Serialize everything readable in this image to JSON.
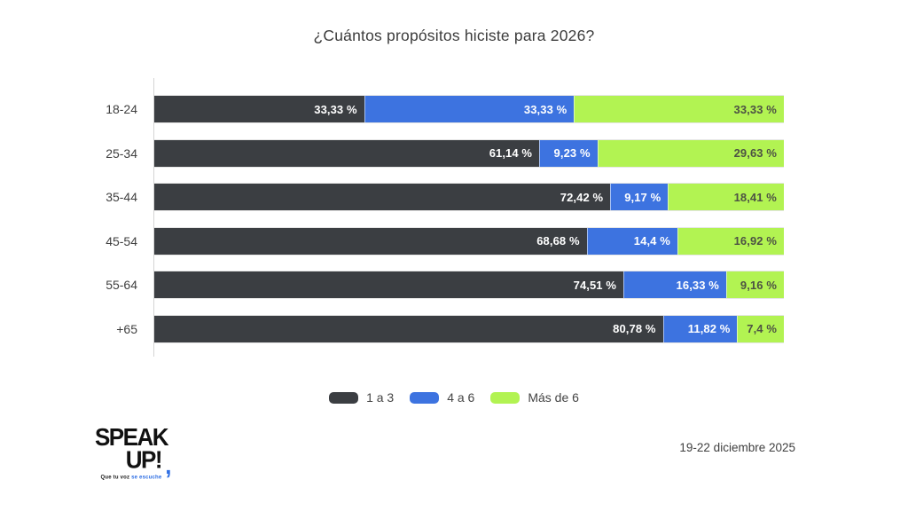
{
  "title": "¿Cuántos propósitos hiciste para 2026?",
  "chart_data": {
    "type": "bar",
    "orientation": "horizontal",
    "stacked": true,
    "unit": "%",
    "title": "¿Cuántos propósitos hiciste para 2026?",
    "categories": [
      "18-24",
      "25-34",
      "35-44",
      "45-54",
      "55-64",
      "+65"
    ],
    "series": [
      {
        "name": "1 a 3",
        "color": "#3b3e42",
        "label_color": "#ffffff",
        "values": [
          33.33,
          61.14,
          72.42,
          68.68,
          74.51,
          80.78
        ],
        "labels": [
          "33,33 %",
          "61,14 %",
          "72,42 %",
          "68,68 %",
          "74,51 %",
          "80,78 %"
        ]
      },
      {
        "name": "4 a 6",
        "color": "#3d73e0",
        "label_color": "#ffffff",
        "values": [
          33.33,
          9.23,
          9.17,
          14.4,
          16.33,
          11.82
        ],
        "labels": [
          "33,33 %",
          "9,23 %",
          "9,17 %",
          "14,4 %",
          "16,33 %",
          "11,82 %"
        ]
      },
      {
        "name": "Más de 6",
        "color": "#b2f352",
        "label_color": "#4d5244",
        "values": [
          33.33,
          29.63,
          18.41,
          16.92,
          9.16,
          7.4
        ],
        "labels": [
          "33,33 %",
          "29,63 %",
          "18,41 %",
          "16,92 %",
          "9,16 %",
          "7,4 %"
        ]
      }
    ],
    "xlim": [
      0,
      100
    ],
    "grid": false,
    "legend_position": "bottom"
  },
  "footer": {
    "date_range": "19-22 diciembre 2025"
  },
  "logo": {
    "line1": "SPEAK",
    "line2": "UP!",
    "comma": ",",
    "tagline_black": "Que tu voz ",
    "tagline_blue": "se escuche",
    "accent_color": "#2f6fe4"
  }
}
